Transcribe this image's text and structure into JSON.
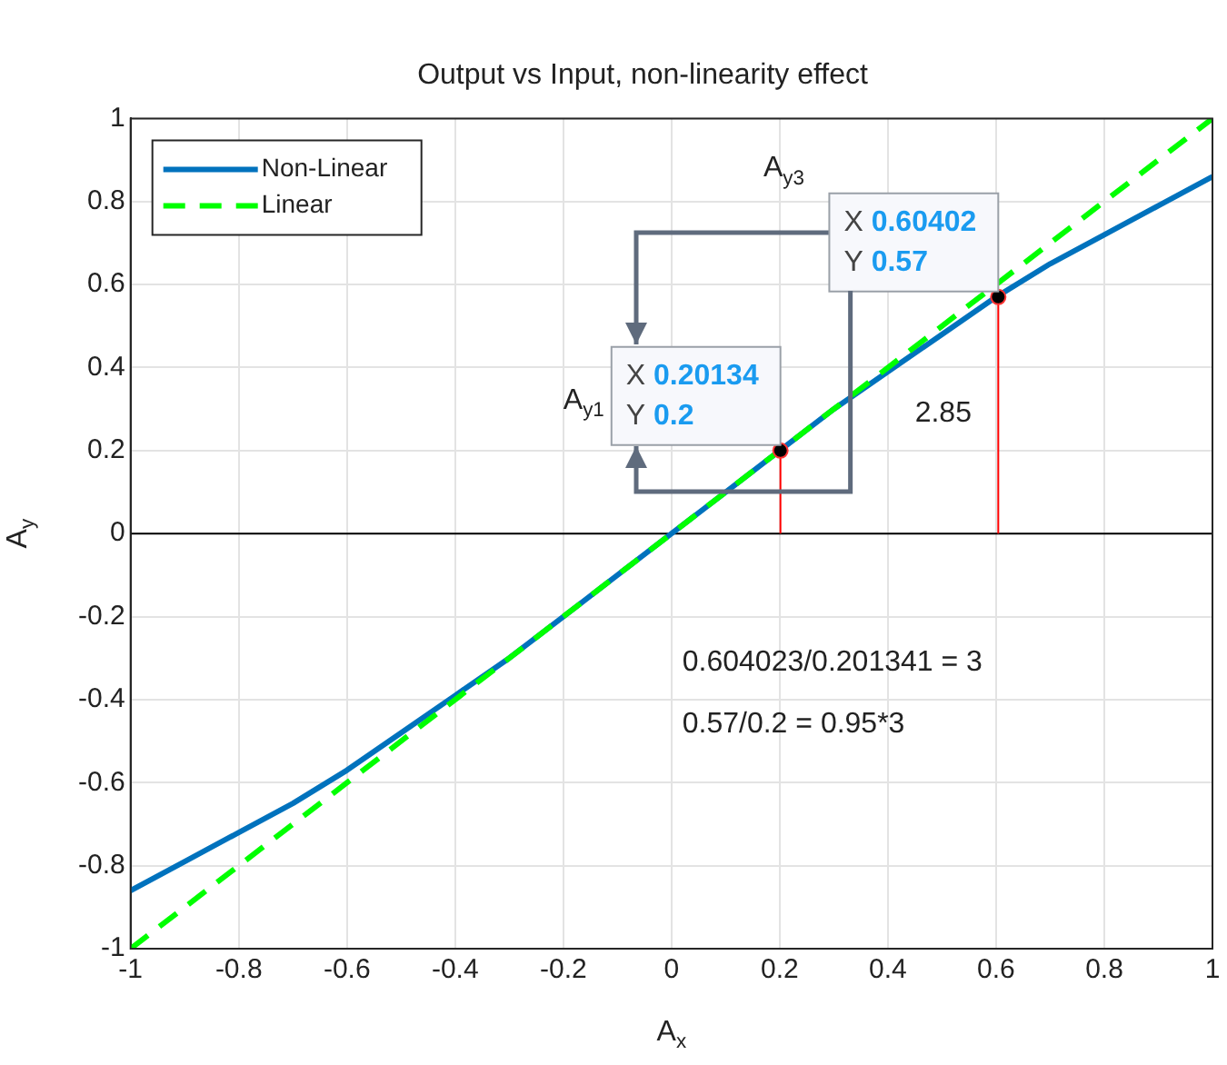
{
  "chart_data": {
    "type": "line",
    "title": "Output vs Input, non-linearity effect",
    "xlabel": "A$_{x}$",
    "ylabel": "A$_{y}$",
    "x": [
      -1,
      -0.9,
      -0.8,
      -0.7,
      -0.6,
      -0.5,
      -0.4,
      -0.3,
      -0.2,
      -0.1,
      0,
      0.1,
      0.2,
      0.3,
      0.4,
      0.5,
      0.6,
      0.7,
      0.8,
      0.9,
      1
    ],
    "series": [
      {
        "name": "Non-Linear",
        "color": "#0072bd",
        "line_style": "solid",
        "values": [
          -0.86,
          -0.79,
          -0.72,
          -0.65,
          -0.57,
          -0.48,
          -0.39,
          -0.3,
          -0.2,
          -0.1,
          0,
          0.1,
          0.2,
          0.3,
          0.39,
          0.48,
          0.57,
          0.65,
          0.72,
          0.79,
          0.86
        ]
      },
      {
        "name": "Linear",
        "color": "#00ff00",
        "line_style": "dashed",
        "x": [
          -1,
          1
        ],
        "values": [
          -1,
          1
        ]
      },
      {
        "type": "line",
        "color": "#ff0000",
        "line_style": "solid",
        "x": [
          0.20134,
          0.20134
        ],
        "values": [
          0,
          0.2
        ]
      },
      {
        "type": "line",
        "color": "#ff0000",
        "line_style": "solid",
        "x": [
          0.60402,
          0.60402
        ],
        "values": [
          0,
          0.57
        ]
      },
      {
        "type": "scatter",
        "color": "#000000",
        "marker": "circle",
        "x": [
          0.20134,
          0.60402
        ],
        "values": [
          0.2,
          0.57
        ]
      }
    ],
    "xlim": [
      -1,
      1
    ],
    "xticks": [
      -1,
      -0.8,
      -0.6,
      -0.4,
      -0.2,
      0,
      0.2,
      0.4,
      0.6,
      0.8,
      1
    ],
    "ylim": [
      -1,
      1
    ],
    "yticks": [
      -1,
      -0.8,
      -0.6,
      -0.4,
      -0.2,
      0,
      0.2,
      0.4,
      0.6,
      0.8,
      1
    ],
    "ref_lines": [
      {
        "axis": "y",
        "value": 0,
        "color": "#000000"
      }
    ],
    "annotations": [
      {
        "text": "X 0.60402\nY 0.57",
        "x": 0.60402,
        "y": 0.57
      },
      {
        "text": "X 0.20134\nY 0.2",
        "x": 0.20134,
        "y": 0.2
      },
      "A$_{y3}$",
      "A$_{y1}$",
      "2.85",
      "0.604023/0.201341 = 3",
      "0.57/0.2 = 0.95*3"
    ],
    "grid": true,
    "legend": "top left"
  }
}
